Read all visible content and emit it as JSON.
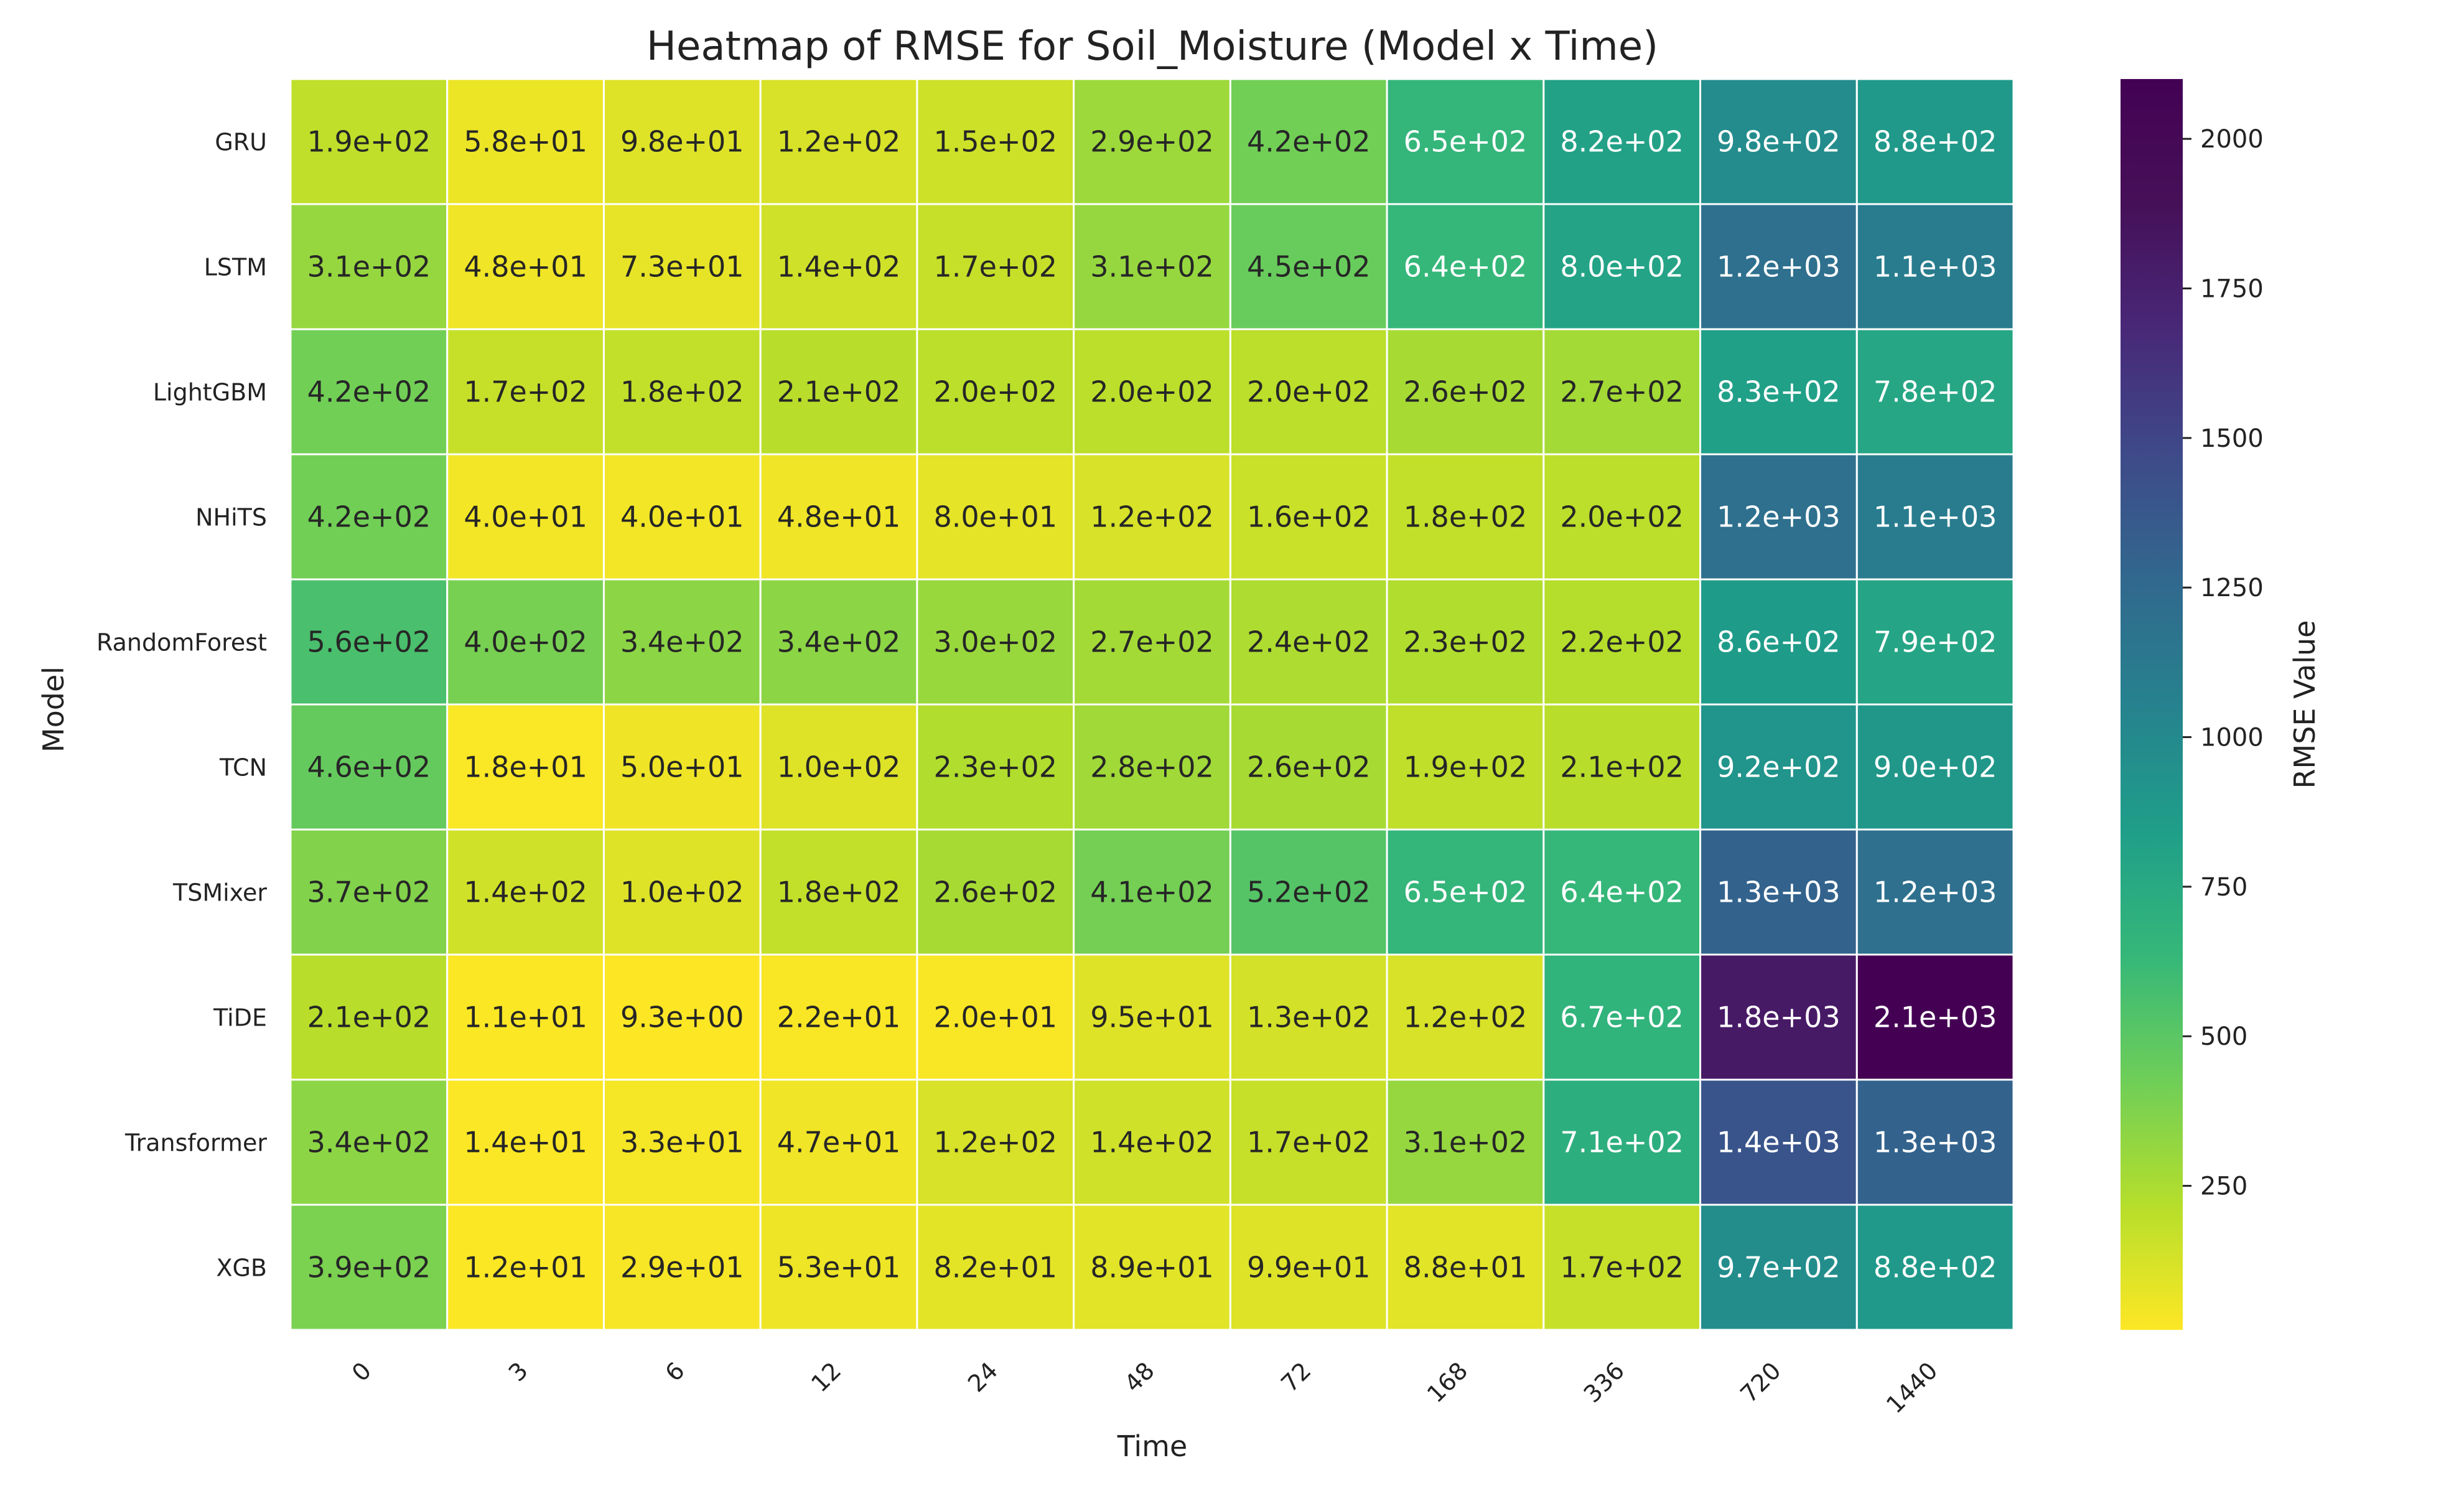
{
  "chart_data": {
    "type": "heatmap",
    "title": "Heatmap of RMSE for Soil_Moisture (Model x Time)",
    "xlabel": "Time",
    "ylabel": "Model",
    "colorbar_label": "RMSE Value",
    "colormap": "viridis_r",
    "colorbar_range": [
      9.3,
      2100
    ],
    "colorbar_ticks": [
      250,
      500,
      750,
      1000,
      1250,
      1500,
      1750,
      2000
    ],
    "grid": false,
    "x_categories": [
      "0",
      "3",
      "6",
      "12",
      "24",
      "48",
      "72",
      "168",
      "336",
      "720",
      "1440"
    ],
    "y_categories": [
      "GRU",
      "LSTM",
      "LightGBM",
      "NHiTS",
      "RandomForest",
      "TCN",
      "TSMixer",
      "TiDE",
      "Transformer",
      "XGB"
    ],
    "values": [
      [
        190,
        58,
        98,
        120,
        150,
        290,
        420,
        650,
        820,
        980,
        880
      ],
      [
        310,
        48,
        73,
        140,
        170,
        310,
        450,
        640,
        800,
        1200,
        1100
      ],
      [
        420,
        170,
        180,
        210,
        200,
        200,
        200,
        260,
        270,
        830,
        780
      ],
      [
        420,
        40,
        40,
        48,
        80,
        120,
        160,
        180,
        200,
        1200,
        1100
      ],
      [
        560,
        400,
        340,
        340,
        300,
        270,
        240,
        230,
        220,
        860,
        790
      ],
      [
        460,
        18,
        50,
        100,
        230,
        280,
        260,
        190,
        210,
        920,
        900
      ],
      [
        370,
        140,
        100,
        180,
        260,
        410,
        520,
        650,
        640,
        1300,
        1200
      ],
      [
        210,
        11,
        9.3,
        22,
        20,
        95,
        130,
        120,
        670,
        1800,
        2100
      ],
      [
        340,
        14,
        33,
        47,
        120,
        140,
        170,
        310,
        710,
        1400,
        1300
      ],
      [
        390,
        12,
        29,
        53,
        82,
        89,
        99,
        88,
        170,
        970,
        880
      ]
    ],
    "annotations": [
      [
        "1.9e+02",
        "5.8e+01",
        "9.8e+01",
        "1.2e+02",
        "1.5e+02",
        "2.9e+02",
        "4.2e+02",
        "6.5e+02",
        "8.2e+02",
        "9.8e+02",
        "8.8e+02"
      ],
      [
        "3.1e+02",
        "4.8e+01",
        "7.3e+01",
        "1.4e+02",
        "1.7e+02",
        "3.1e+02",
        "4.5e+02",
        "6.4e+02",
        "8.0e+02",
        "1.2e+03",
        "1.1e+03"
      ],
      [
        "4.2e+02",
        "1.7e+02",
        "1.8e+02",
        "2.1e+02",
        "2.0e+02",
        "2.0e+02",
        "2.0e+02",
        "2.6e+02",
        "2.7e+02",
        "8.3e+02",
        "7.8e+02"
      ],
      [
        "4.2e+02",
        "4.0e+01",
        "4.0e+01",
        "4.8e+01",
        "8.0e+01",
        "1.2e+02",
        "1.6e+02",
        "1.8e+02",
        "2.0e+02",
        "1.2e+03",
        "1.1e+03"
      ],
      [
        "5.6e+02",
        "4.0e+02",
        "3.4e+02",
        "3.4e+02",
        "3.0e+02",
        "2.7e+02",
        "2.4e+02",
        "2.3e+02",
        "2.2e+02",
        "8.6e+02",
        "7.9e+02"
      ],
      [
        "4.6e+02",
        "1.8e+01",
        "5.0e+01",
        "1.0e+02",
        "2.3e+02",
        "2.8e+02",
        "2.6e+02",
        "1.9e+02",
        "2.1e+02",
        "9.2e+02",
        "9.0e+02"
      ],
      [
        "3.7e+02",
        "1.4e+02",
        "1.0e+02",
        "1.8e+02",
        "2.6e+02",
        "4.1e+02",
        "5.2e+02",
        "6.5e+02",
        "6.4e+02",
        "1.3e+03",
        "1.2e+03"
      ],
      [
        "2.1e+02",
        "1.1e+01",
        "9.3e+00",
        "2.2e+01",
        "2.0e+01",
        "9.5e+01",
        "1.3e+02",
        "1.2e+02",
        "6.7e+02",
        "1.8e+03",
        "2.1e+03"
      ],
      [
        "3.4e+02",
        "1.4e+01",
        "3.3e+01",
        "4.7e+01",
        "1.2e+02",
        "1.4e+02",
        "1.7e+02",
        "3.1e+02",
        "7.1e+02",
        "1.4e+03",
        "1.3e+03"
      ],
      [
        "3.9e+02",
        "1.2e+01",
        "2.9e+01",
        "5.3e+01",
        "8.2e+01",
        "8.9e+01",
        "9.9e+01",
        "8.8e+01",
        "1.7e+02",
        "9.7e+02",
        "8.8e+02"
      ]
    ]
  }
}
